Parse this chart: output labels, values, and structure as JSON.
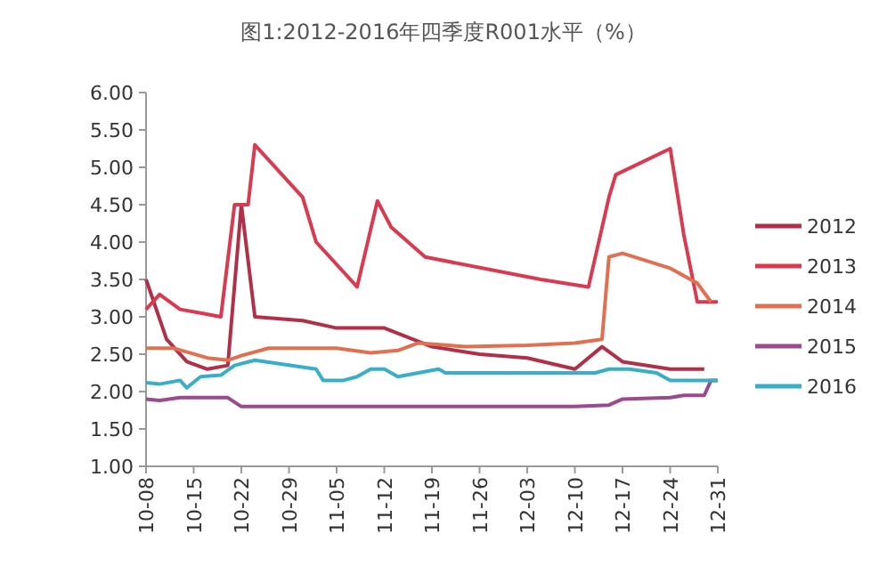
{
  "chart_data": {
    "type": "line",
    "title": "图1:2012-2016年四季度R001水平（%）",
    "ylim": [
      1,
      6
    ],
    "yticks": [
      {
        "value": 1,
        "label": "1.00"
      },
      {
        "value": 1.5,
        "label": "1.50"
      },
      {
        "value": 2,
        "label": "2.00"
      },
      {
        "value": 2.5,
        "label": "2.50"
      },
      {
        "value": 3,
        "label": "3.00"
      },
      {
        "value": 3.5,
        "label": "3.50"
      },
      {
        "value": 4,
        "label": "4.00"
      },
      {
        "value": 4.5,
        "label": "4.50"
      },
      {
        "value": 5,
        "label": "5.00"
      },
      {
        "value": 5.5,
        "label": "5.50"
      },
      {
        "value": 6,
        "label": "6.00"
      }
    ],
    "xlim": [
      "--10-08",
      "--12-31"
    ],
    "xticks": [
      {
        "value": "--10-08",
        "label": "10-08"
      },
      {
        "value": "--10-15",
        "label": "10-15"
      },
      {
        "value": "--10-22",
        "label": "10-22"
      },
      {
        "value": "--10-29",
        "label": "10-29"
      },
      {
        "value": "--11-05",
        "label": "11-05"
      },
      {
        "value": "--11-12",
        "label": "11-12"
      },
      {
        "value": "--11-19",
        "label": "11-19"
      },
      {
        "value": "--11-26",
        "label": "11-26"
      },
      {
        "value": "--12-03",
        "label": "12-03"
      },
      {
        "value": "--12-10",
        "label": "12-10"
      },
      {
        "value": "--12-17",
        "label": "12-17"
      },
      {
        "value": "--12-24",
        "label": "12-24"
      },
      {
        "value": "--12-31",
        "label": "12-31"
      }
    ],
    "grid": false,
    "legend": "right",
    "marker": "none",
    "line_style": "solid",
    "series": [
      {
        "name": "2012",
        "color": "#b0304a",
        "x": [
          "--10-08",
          "--10-11",
          "--10-14",
          "--10-17",
          "--10-20",
          "--10-22",
          "--10-24",
          "--10-31",
          "--11-05",
          "--11-12",
          "--11-19",
          "--11-26",
          "--12-03",
          "--12-10",
          "--12-14",
          "--12-17",
          "--12-24",
          "--12-29"
        ],
        "values": [
          3.5,
          2.7,
          2.4,
          2.3,
          2.35,
          4.5,
          3.0,
          2.95,
          2.85,
          2.85,
          2.6,
          2.5,
          2.45,
          2.3,
          2.6,
          2.4,
          2.3,
          2.3
        ]
      },
      {
        "name": "2013",
        "color": "#d83a50",
        "x": [
          "--10-08",
          "--10-10",
          "--10-13",
          "--10-16",
          "--10-19",
          "--10-21",
          "--10-23",
          "--10-24",
          "--10-31",
          "--11-02",
          "--11-08",
          "--11-11",
          "--11-13",
          "--11-18",
          "--12-05",
          "--12-12",
          "--12-15",
          "--12-16",
          "--12-24",
          "--12-26",
          "--12-28",
          "--12-31"
        ],
        "values": [
          3.1,
          3.3,
          3.1,
          3.05,
          3.0,
          4.5,
          4.5,
          5.3,
          4.6,
          4.0,
          3.4,
          4.55,
          4.2,
          3.8,
          3.5,
          3.4,
          4.6,
          4.9,
          5.25,
          4.1,
          3.2,
          3.2
        ]
      },
      {
        "name": "2014",
        "color": "#e07050",
        "x": [
          "--10-08",
          "--10-12",
          "--10-17",
          "--10-20",
          "--10-22",
          "--10-26",
          "--11-05",
          "--11-10",
          "--11-14",
          "--11-17",
          "--11-24",
          "--12-03",
          "--12-10",
          "--12-14",
          "--12-15",
          "--12-17",
          "--12-24",
          "--12-28",
          "--12-30"
        ],
        "values": [
          2.58,
          2.58,
          2.45,
          2.42,
          2.48,
          2.58,
          2.58,
          2.52,
          2.55,
          2.65,
          2.6,
          2.62,
          2.65,
          2.7,
          3.8,
          3.85,
          3.65,
          3.45,
          3.2
        ]
      },
      {
        "name": "2015",
        "color": "#9a4a8e",
        "x": [
          "--10-08",
          "--10-10",
          "--10-13",
          "--10-20",
          "--10-22",
          "--11-05",
          "--11-19",
          "--12-10",
          "--12-15",
          "--12-17",
          "--12-24",
          "--12-26",
          "--12-29",
          "--12-30",
          "--12-31"
        ],
        "values": [
          1.9,
          1.88,
          1.92,
          1.92,
          1.8,
          1.8,
          1.8,
          1.8,
          1.82,
          1.9,
          1.92,
          1.95,
          1.95,
          2.15,
          2.15
        ]
      },
      {
        "name": "2016",
        "color": "#3aaec8",
        "x": [
          "--10-08",
          "--10-10",
          "--10-13",
          "--10-14",
          "--10-16",
          "--10-19",
          "--10-21",
          "--10-24",
          "--11-02",
          "--11-03",
          "--11-06",
          "--11-08",
          "--11-10",
          "--11-12",
          "--11-14",
          "--11-20",
          "--11-21",
          "--12-03",
          "--12-13",
          "--12-15",
          "--12-18",
          "--12-22",
          "--12-24",
          "--12-27",
          "--12-31"
        ],
        "values": [
          2.12,
          2.1,
          2.15,
          2.05,
          2.2,
          2.22,
          2.35,
          2.42,
          2.3,
          2.15,
          2.15,
          2.2,
          2.3,
          2.3,
          2.2,
          2.3,
          2.25,
          2.25,
          2.25,
          2.3,
          2.3,
          2.25,
          2.15,
          2.15,
          2.15
        ]
      }
    ]
  }
}
